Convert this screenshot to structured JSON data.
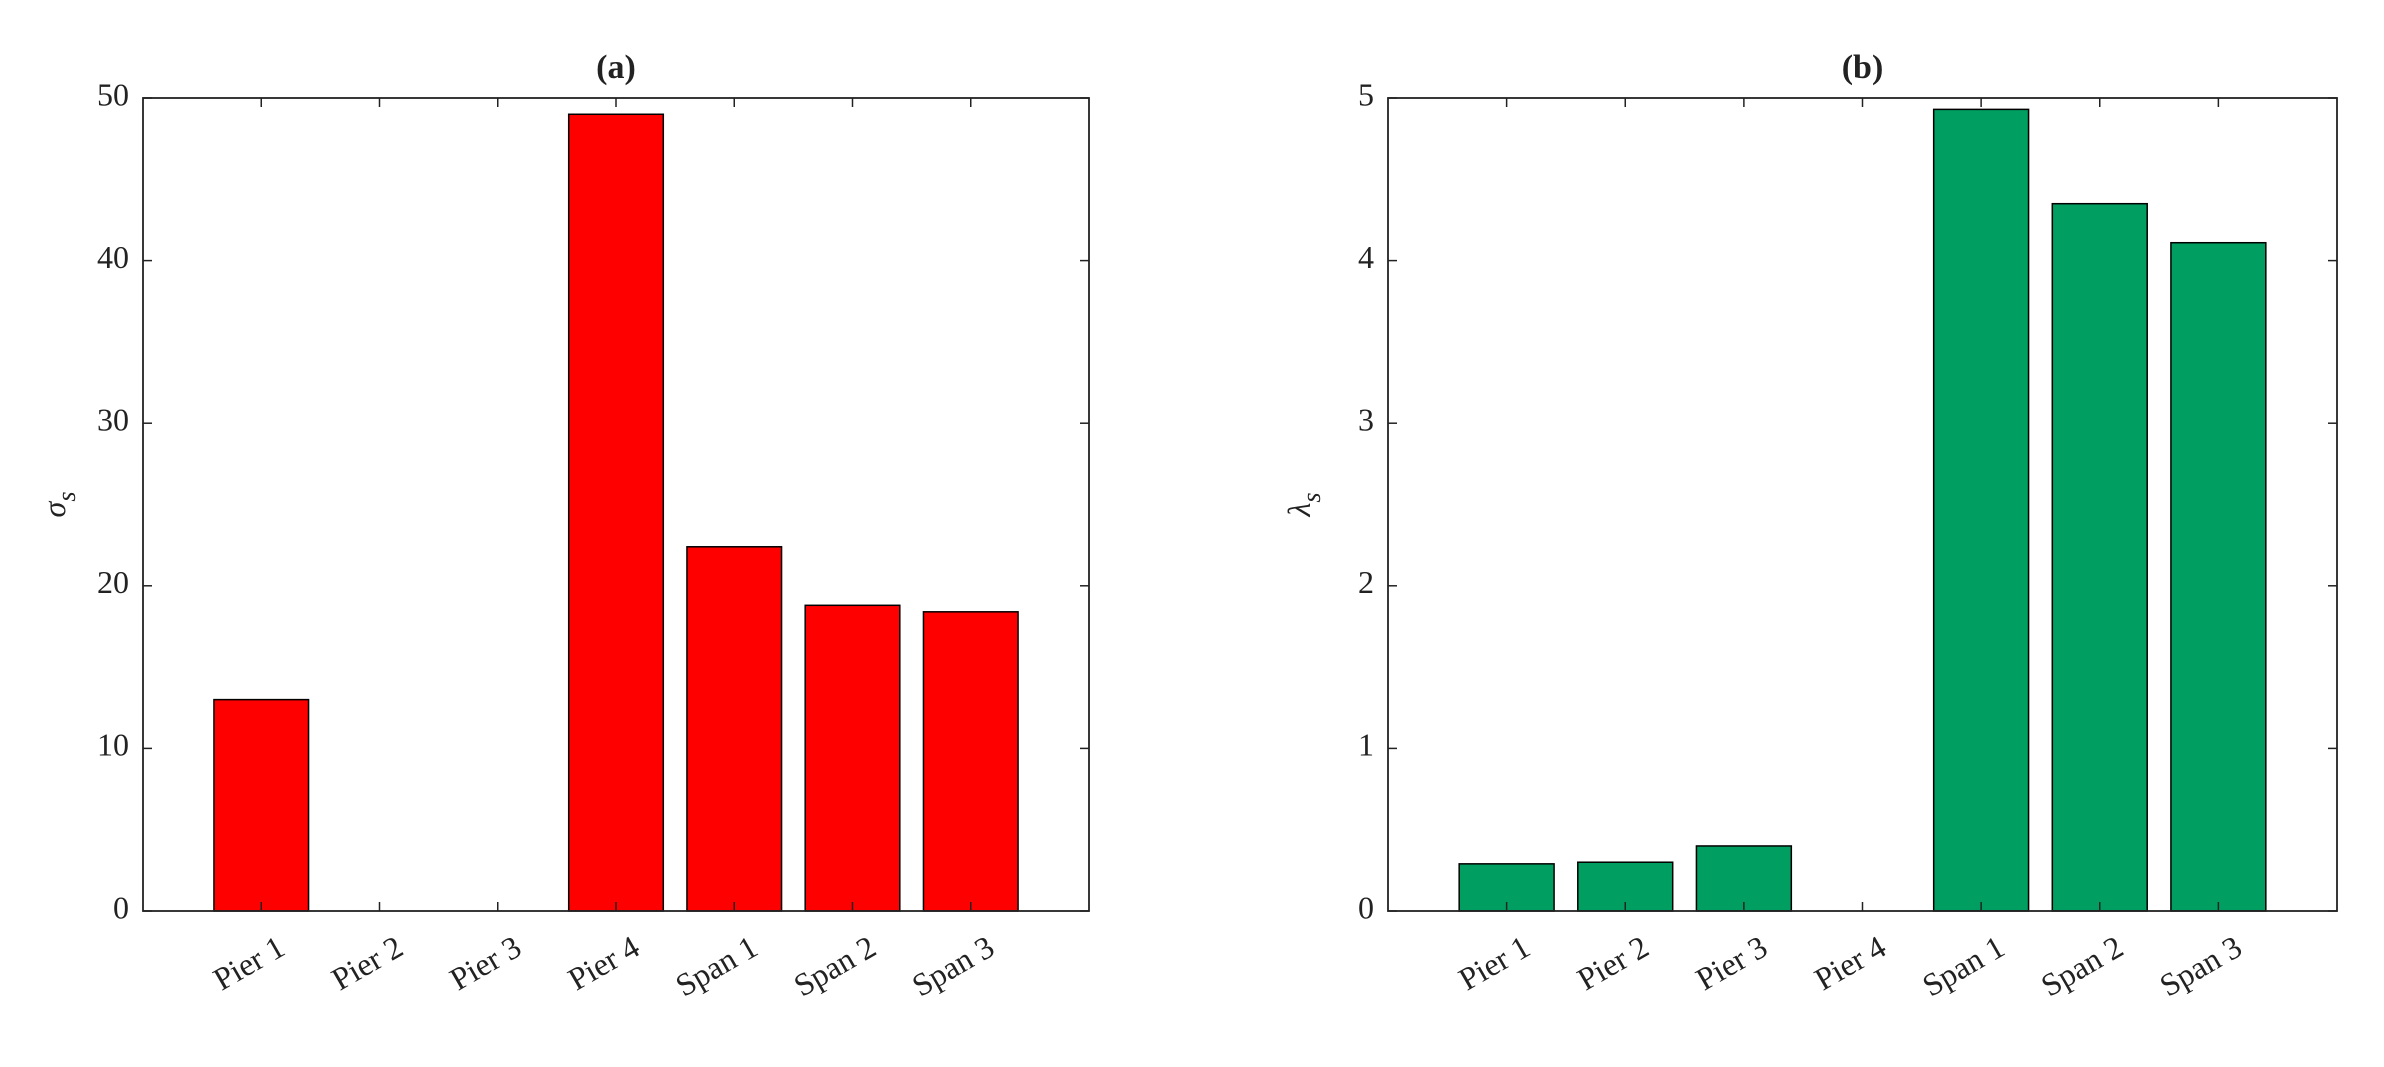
{
  "chart_data": [
    {
      "type": "bar",
      "title": "(a)",
      "ylabel": "σ",
      "ylabel_subscript": "s",
      "categories": [
        "Pier 1",
        "Pier 2",
        "Pier 3",
        "Pier 4",
        "Span 1",
        "Span 2",
        "Span 3"
      ],
      "values": [
        13,
        0,
        0,
        49,
        22.4,
        18.8,
        18.4
      ],
      "color": "#ff0000",
      "ylim": [
        0,
        50
      ],
      "yticks": [
        0,
        10,
        20,
        30,
        40,
        50
      ]
    },
    {
      "type": "bar",
      "title": "(b)",
      "ylabel": "λ",
      "ylabel_subscript": "s",
      "categories": [
        "Pier 1",
        "Pier 2",
        "Pier 3",
        "Pier 4",
        "Span 1",
        "Span 2",
        "Span 3"
      ],
      "values": [
        0.29,
        0.3,
        0.4,
        0,
        4.93,
        4.35,
        4.11
      ],
      "color": "#009e60",
      "ylim": [
        0,
        5
      ],
      "yticks": [
        0,
        1,
        2,
        3,
        4,
        5
      ]
    }
  ]
}
